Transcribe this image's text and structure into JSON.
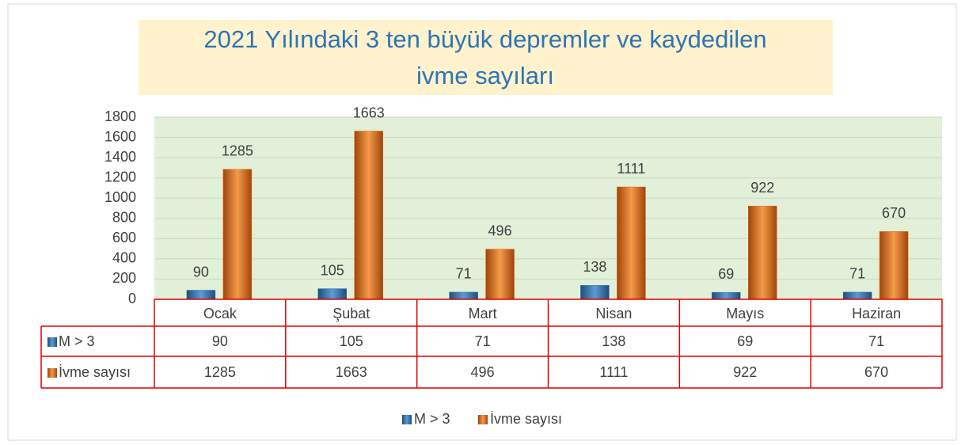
{
  "chart_data": {
    "type": "bar",
    "title": "2021 Yılındaki 3 ten büyük depremler ve kaydedilen ivme sayıları",
    "categories": [
      "Ocak",
      "Şubat",
      "Mart",
      "Nisan",
      "Mayıs",
      "Haziran"
    ],
    "series": [
      {
        "name": "M > 3",
        "color": "#2e75b6",
        "values": [
          90,
          105,
          71,
          138,
          69,
          71
        ]
      },
      {
        "name": "İvme sayısı",
        "color": "#e46c0a",
        "values": [
          1285,
          1663,
          496,
          1111,
          922,
          670
        ]
      }
    ],
    "ylim": [
      0,
      1800
    ],
    "yticks": [
      0,
      200,
      400,
      600,
      800,
      1000,
      1200,
      1400,
      1600,
      1800
    ],
    "grid": true,
    "legend": "bottom",
    "data_table": true
  }
}
